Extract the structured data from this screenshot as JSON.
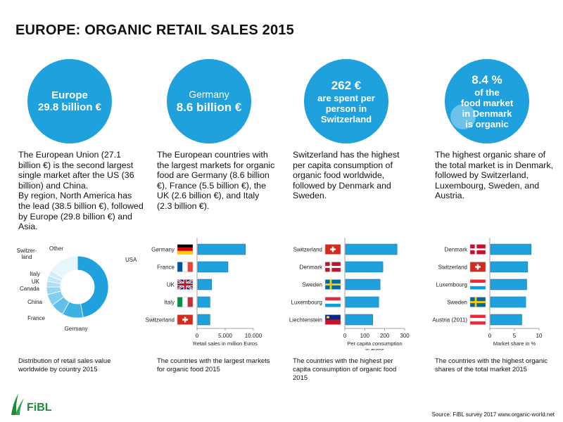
{
  "title": "EUROPE: ORGANIC RETAIL SALES 2015",
  "circles": [
    {
      "line1": "Europe",
      "line2": "29.8 billion €"
    },
    {
      "line1": "Germany",
      "line2": "8.6 billion €"
    },
    {
      "line1": "262 €",
      "line2": "are spent per",
      "line3": "person in",
      "line4": "Switzerland"
    },
    {
      "line1": "8.4 %",
      "line2": "of  the",
      "line3": "food market",
      "line4": "in Denmark",
      "line5": "is organic"
    }
  ],
  "descriptions": [
    "The European Union (27.1 billion €) is the second largest single market after the US (36 billion)  and China.\nBy region, North America has the lead (38.5 billion €), followed by Europe (29.8 billion €) and Asia.",
    "The European countries with the largest markets for organic food are Germany (8.6 billion €), France (5.5 billion €), the UK (2.6 billion €), and Italy  (2.3 billion €).",
    "Switzerland has the highest per capita consumption of organic food worldwide, followed by Denmark and Sweden.",
    "The highest organic share of the total market is in Denmark, followed by Switzerland, Luxembourg, Sweden, and Austria."
  ],
  "captions": [
    "Distribution of retail sales value worldwide by country 2015",
    "The countries with the largest markets for organic food  2015",
    "The countries with the highest per capita consumption of organic food 2015",
    "The countries with the highest organic shares of the total market  2015"
  ],
  "footer": "Source: FiBL survey 2017 www.organic-world.net",
  "logo_text": "FiBL",
  "colors": {
    "accent": "#1ea1dd",
    "bar": "#1ea1dd",
    "bar_stroke": "#0f6fa6"
  },
  "chart_data": [
    {
      "type": "pie",
      "donut": true,
      "categories": [
        "USA",
        "Germany",
        "France",
        "China",
        "Canada",
        "UK",
        "Italy",
        "Switzerland",
        "Other"
      ],
      "labels": [
        "USA",
        "Germany",
        "France",
        "China",
        "Canada",
        "UK",
        "Italy",
        "Switzer-\nland",
        "Other"
      ],
      "values": [
        47,
        11,
        7,
        6,
        4,
        3,
        3,
        3,
        16
      ],
      "colors": [
        "#1ea1dd",
        "#3db0e4",
        "#62c0ea",
        "#82ceef",
        "#98d7f2",
        "#addff4",
        "#c1e8f7",
        "#d2eff9",
        "#e6f6fc"
      ]
    },
    {
      "type": "bar",
      "orientation": "horizontal",
      "categories": [
        "Germany",
        "France",
        "UK",
        "Italy",
        "Switzerland"
      ],
      "values": [
        8600,
        5500,
        2600,
        2300,
        2300
      ],
      "flags": [
        "germany-flag",
        "france-flag",
        "uk-flag",
        "italy-flag",
        "switzerland-flag"
      ],
      "xlim": [
        0,
        10000
      ],
      "ticks": [
        "0",
        "5.000",
        "10.000"
      ],
      "tick_values": [
        0,
        5000,
        10000
      ],
      "xlabel": "Retail sales in million Euros"
    },
    {
      "type": "bar",
      "orientation": "horizontal",
      "categories": [
        "Switzerland",
        "Denmark",
        "Sweden",
        "Luxembourg",
        "Liechtenstein"
      ],
      "values": [
        262,
        191,
        177,
        170,
        140
      ],
      "flags": [
        "switzerland-flag",
        "denmark-flag",
        "sweden-flag",
        "luxembourg-flag",
        "liechtenstein-flag"
      ],
      "xlim": [
        0,
        300
      ],
      "ticks": [
        "0",
        "100",
        "200",
        "300"
      ],
      "tick_values": [
        0,
        100,
        200,
        300
      ],
      "xlabel": "Per capita consumption\nin euros"
    },
    {
      "type": "bar",
      "orientation": "horizontal",
      "categories": [
        "Denmark",
        "Switzerland",
        "Luxembourg",
        "Sweden",
        "Austria (2011)"
      ],
      "values": [
        8.4,
        7.7,
        7.5,
        7.3,
        6.5
      ],
      "flags": [
        "denmark-flag",
        "switzerland-flag",
        "luxembourg-flag",
        "sweden-flag",
        "austria-flag"
      ],
      "xlim": [
        0,
        10
      ],
      "ticks": [
        "0",
        "5",
        "10"
      ],
      "tick_values": [
        0,
        5,
        10
      ],
      "xlabel": "Market share in %"
    }
  ]
}
